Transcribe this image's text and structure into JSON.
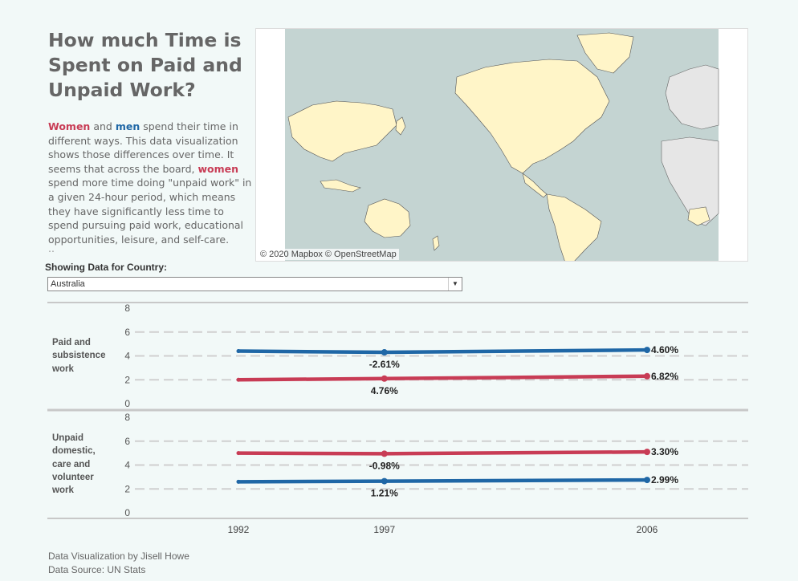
{
  "title": "How much Time is Spent on Paid and Unpaid Work?",
  "description": {
    "women": "Women",
    "and": " and ",
    "men": "men",
    "p1": " spend their time in different ways. This data visualization shows those differences over time. It seems that across the board, ",
    "women2": "women",
    "p2": " spend more time doing \"unpaid work\" in a given 24-hour period, which means they have significantly less time to spend pursuing paid work, educational opportunities, leisure, and self-care.",
    "more": ".."
  },
  "map": {
    "credit": "© 2020 Mapbox © OpenStreetMap"
  },
  "filter": {
    "label": "Showing Data for Country:",
    "value": "Australia",
    "arrow": "▼"
  },
  "colors": {
    "women": "#c83c55",
    "men": "#1f67a6"
  },
  "chart_data": {
    "type": "line",
    "x": [
      1992,
      1997,
      2006
    ],
    "panels": [
      {
        "label": "Paid and subsistence work",
        "ylim": [
          0,
          8
        ],
        "yticks": [
          0,
          2,
          4,
          6,
          8
        ],
        "series": [
          {
            "color": "men",
            "values": [
              4.4,
              4.3,
              4.5
            ],
            "labels": [
              "",
              "-2.61%",
              "4.60%"
            ]
          },
          {
            "color": "women",
            "values": [
              2.0,
              2.1,
              2.3
            ],
            "labels": [
              "",
              "4.76%",
              "6.82%"
            ]
          }
        ]
      },
      {
        "label": "Unpaid domestic, care and volunteer work",
        "ylim": [
          0,
          8
        ],
        "yticks": [
          0,
          2,
          4,
          6,
          8
        ],
        "series": [
          {
            "color": "women",
            "values": [
              5.0,
              4.95,
              5.1
            ],
            "labels": [
              "",
              "-0.98%",
              "3.30%"
            ]
          },
          {
            "color": "men",
            "values": [
              2.6,
              2.65,
              2.75
            ],
            "labels": [
              "",
              "1.21%",
              "2.99%"
            ]
          }
        ]
      }
    ]
  },
  "footer": {
    "line1": "Data Visualization by Jisell Howe",
    "line2": "Data Source: UN Stats"
  }
}
